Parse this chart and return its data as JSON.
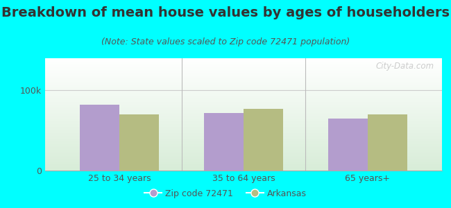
{
  "title": "Breakdown of mean house values by ages of householders",
  "subtitle": "(Note: State values scaled to Zip code 72471 population)",
  "categories": [
    "25 to 34 years",
    "35 to 64 years",
    "65 years+"
  ],
  "zip_values": [
    82000,
    72000,
    65000
  ],
  "state_values": [
    70000,
    77000,
    70000
  ],
  "zip_color": "#b39dcd",
  "state_color": "#b5bc82",
  "background_outer": "#00ffff",
  "yticks": [
    0,
    100000
  ],
  "ytick_labels": [
    "0",
    "100k"
  ],
  "ylim": [
    0,
    140000
  ],
  "bar_width": 0.32,
  "legend_zip_label": "Zip code 72471",
  "legend_state_label": "Arkansas",
  "title_fontsize": 14,
  "subtitle_fontsize": 9,
  "tick_fontsize": 9,
  "legend_fontsize": 9,
  "title_color": "#333333",
  "subtitle_color": "#555555",
  "tick_color": "#555555",
  "watermark": "City-Data.com",
  "gradient_top": "#ffffff",
  "gradient_bottom": "#d4edda"
}
